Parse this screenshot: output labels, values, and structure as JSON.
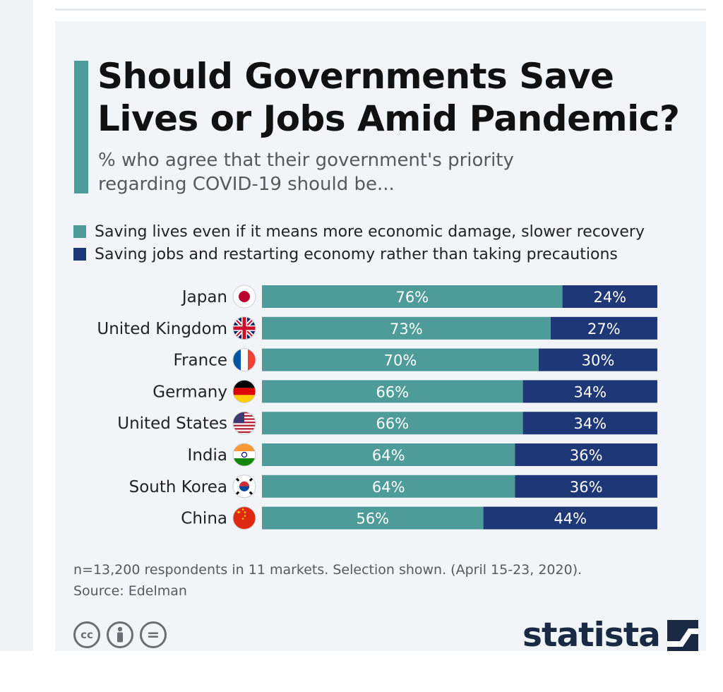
{
  "title": "Should Governments Save Lives or Jobs Amid Pandemic?",
  "subtitle": "% who agree that their government's priority regarding COVID-19 should be...",
  "colors": {
    "lives": "#4e9c9a",
    "jobs": "#1e3877",
    "accent": "#4e9c9a"
  },
  "chart_data": {
    "type": "bar",
    "orientation": "horizontal",
    "stacked": true,
    "categories": [
      "Japan",
      "United Kingdom",
      "France",
      "Germany",
      "United States",
      "India",
      "South Korea",
      "China"
    ],
    "series": [
      {
        "name": "Saving lives even if it means more economic damage, slower recovery",
        "values": [
          76,
          73,
          70,
          66,
          66,
          64,
          64,
          56
        ],
        "color": "#4e9c9a"
      },
      {
        "name": "Saving jobs and restarting  economy rather than taking precautions",
        "values": [
          24,
          27,
          30,
          34,
          34,
          36,
          36,
          44
        ],
        "color": "#1e3877"
      }
    ],
    "value_suffix": "%",
    "xlim": [
      0,
      100
    ],
    "grid": false,
    "legend_position": "top-left",
    "flags": [
      "japan-flag-icon",
      "united-kingdom-flag-icon",
      "france-flag-icon",
      "germany-flag-icon",
      "united-states-flag-icon",
      "india-flag-icon",
      "south-korea-flag-icon",
      "china-flag-icon"
    ]
  },
  "footnote": {
    "note": "n=13,200 respondents in 11 markets. Selection shown. (April 15-23, 2020).",
    "source": "Source: Edelman"
  },
  "license_icons": [
    {
      "name": "cc-icon",
      "glyph": "cc"
    },
    {
      "name": "attribution-icon",
      "glyph": ""
    },
    {
      "name": "no-derivatives-icon",
      "glyph": "="
    }
  ],
  "brand": "statista"
}
